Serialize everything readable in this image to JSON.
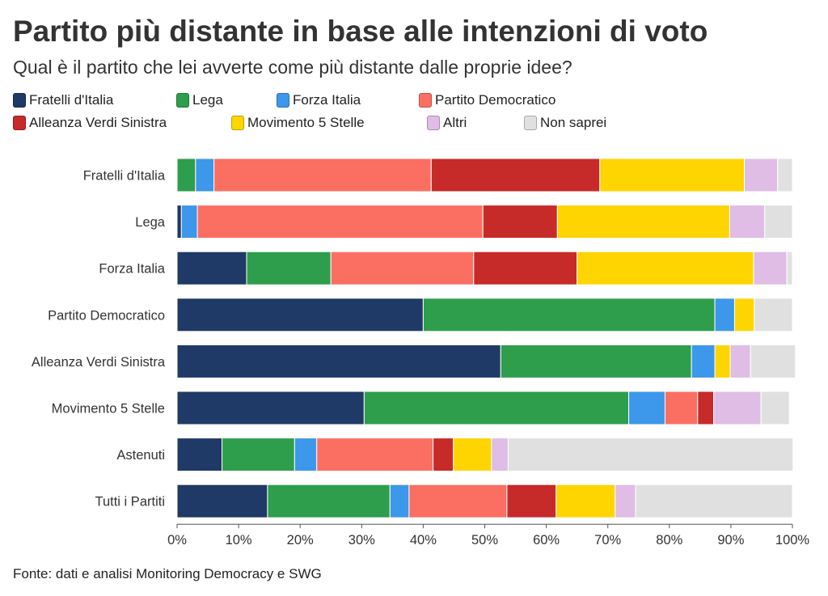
{
  "title": "Partito più distante in base alle intenzioni di voto",
  "subtitle": "Qual è il partito che lei avverte come più distante dalle proprie idee?",
  "source": "Fonte: dati e analisi Monitoring Democracy e SWG",
  "colors": {
    "Fratelli d'Italia": "#1f3a66",
    "Lega": "#2e9e4c",
    "Forza Italia": "#3d97ea",
    "Partito Democratico": "#fb6f63",
    "Alleanza Verdi Sinistra": "#c62a29",
    "Movimento 5 Stelle": "#fed501",
    "Altri": "#dfbde5",
    "Non saprei": "#e0e0e0"
  },
  "chart_data": {
    "type": "bar",
    "orientation": "horizontal",
    "stacked": true,
    "title": "Partito più distante in base alle intenzioni di voto",
    "subtitle": "Qual è il partito che lei avverte come più distante dalle proprie idee?",
    "xlim": [
      0,
      100
    ],
    "x_ticks": [
      "0%",
      "10%",
      "20%",
      "30%",
      "40%",
      "50%",
      "60%",
      "70%",
      "80%",
      "90%",
      "100%"
    ],
    "legend_position": "top",
    "categories": [
      "Fratelli d'Italia",
      "Lega",
      "Forza Italia",
      "Partito Democratico",
      "Alleanza Verdi Sinistra",
      "Movimento 5 Stelle",
      "Astenuti",
      "Tutti i Partiti"
    ],
    "series": [
      {
        "name": "Fratelli d'Italia",
        "values": [
          0,
          0.7,
          11.3,
          40,
          52.6,
          30.4,
          7.3,
          14.7
        ]
      },
      {
        "name": "Lega",
        "values": [
          3,
          0,
          13.7,
          47.4,
          31,
          43,
          11.8,
          19.9
        ]
      },
      {
        "name": "Forza Italia",
        "values": [
          3,
          2.6,
          0,
          3.2,
          3.8,
          5.9,
          3.6,
          3.1
        ]
      },
      {
        "name": "Partito Democratico",
        "values": [
          35.3,
          46.4,
          23.2,
          0,
          0,
          5.3,
          18.9,
          15.9
        ]
      },
      {
        "name": "Alleanza Verdi Sinistra",
        "values": [
          27.4,
          12.1,
          16.8,
          0,
          0,
          2.6,
          3.3,
          8
        ]
      },
      {
        "name": "Movimento 5 Stelle",
        "values": [
          23.5,
          28,
          28.7,
          3.2,
          2.5,
          0,
          6.2,
          9.6
        ]
      },
      {
        "name": "Altri",
        "values": [
          5.4,
          5.7,
          5.4,
          0,
          3.3,
          7.7,
          2.7,
          3.3
        ]
      },
      {
        "name": "Non saprei",
        "values": [
          2.4,
          4.5,
          0.9,
          6.2,
          7.3,
          4.6,
          46.3,
          25.5
        ]
      }
    ]
  }
}
